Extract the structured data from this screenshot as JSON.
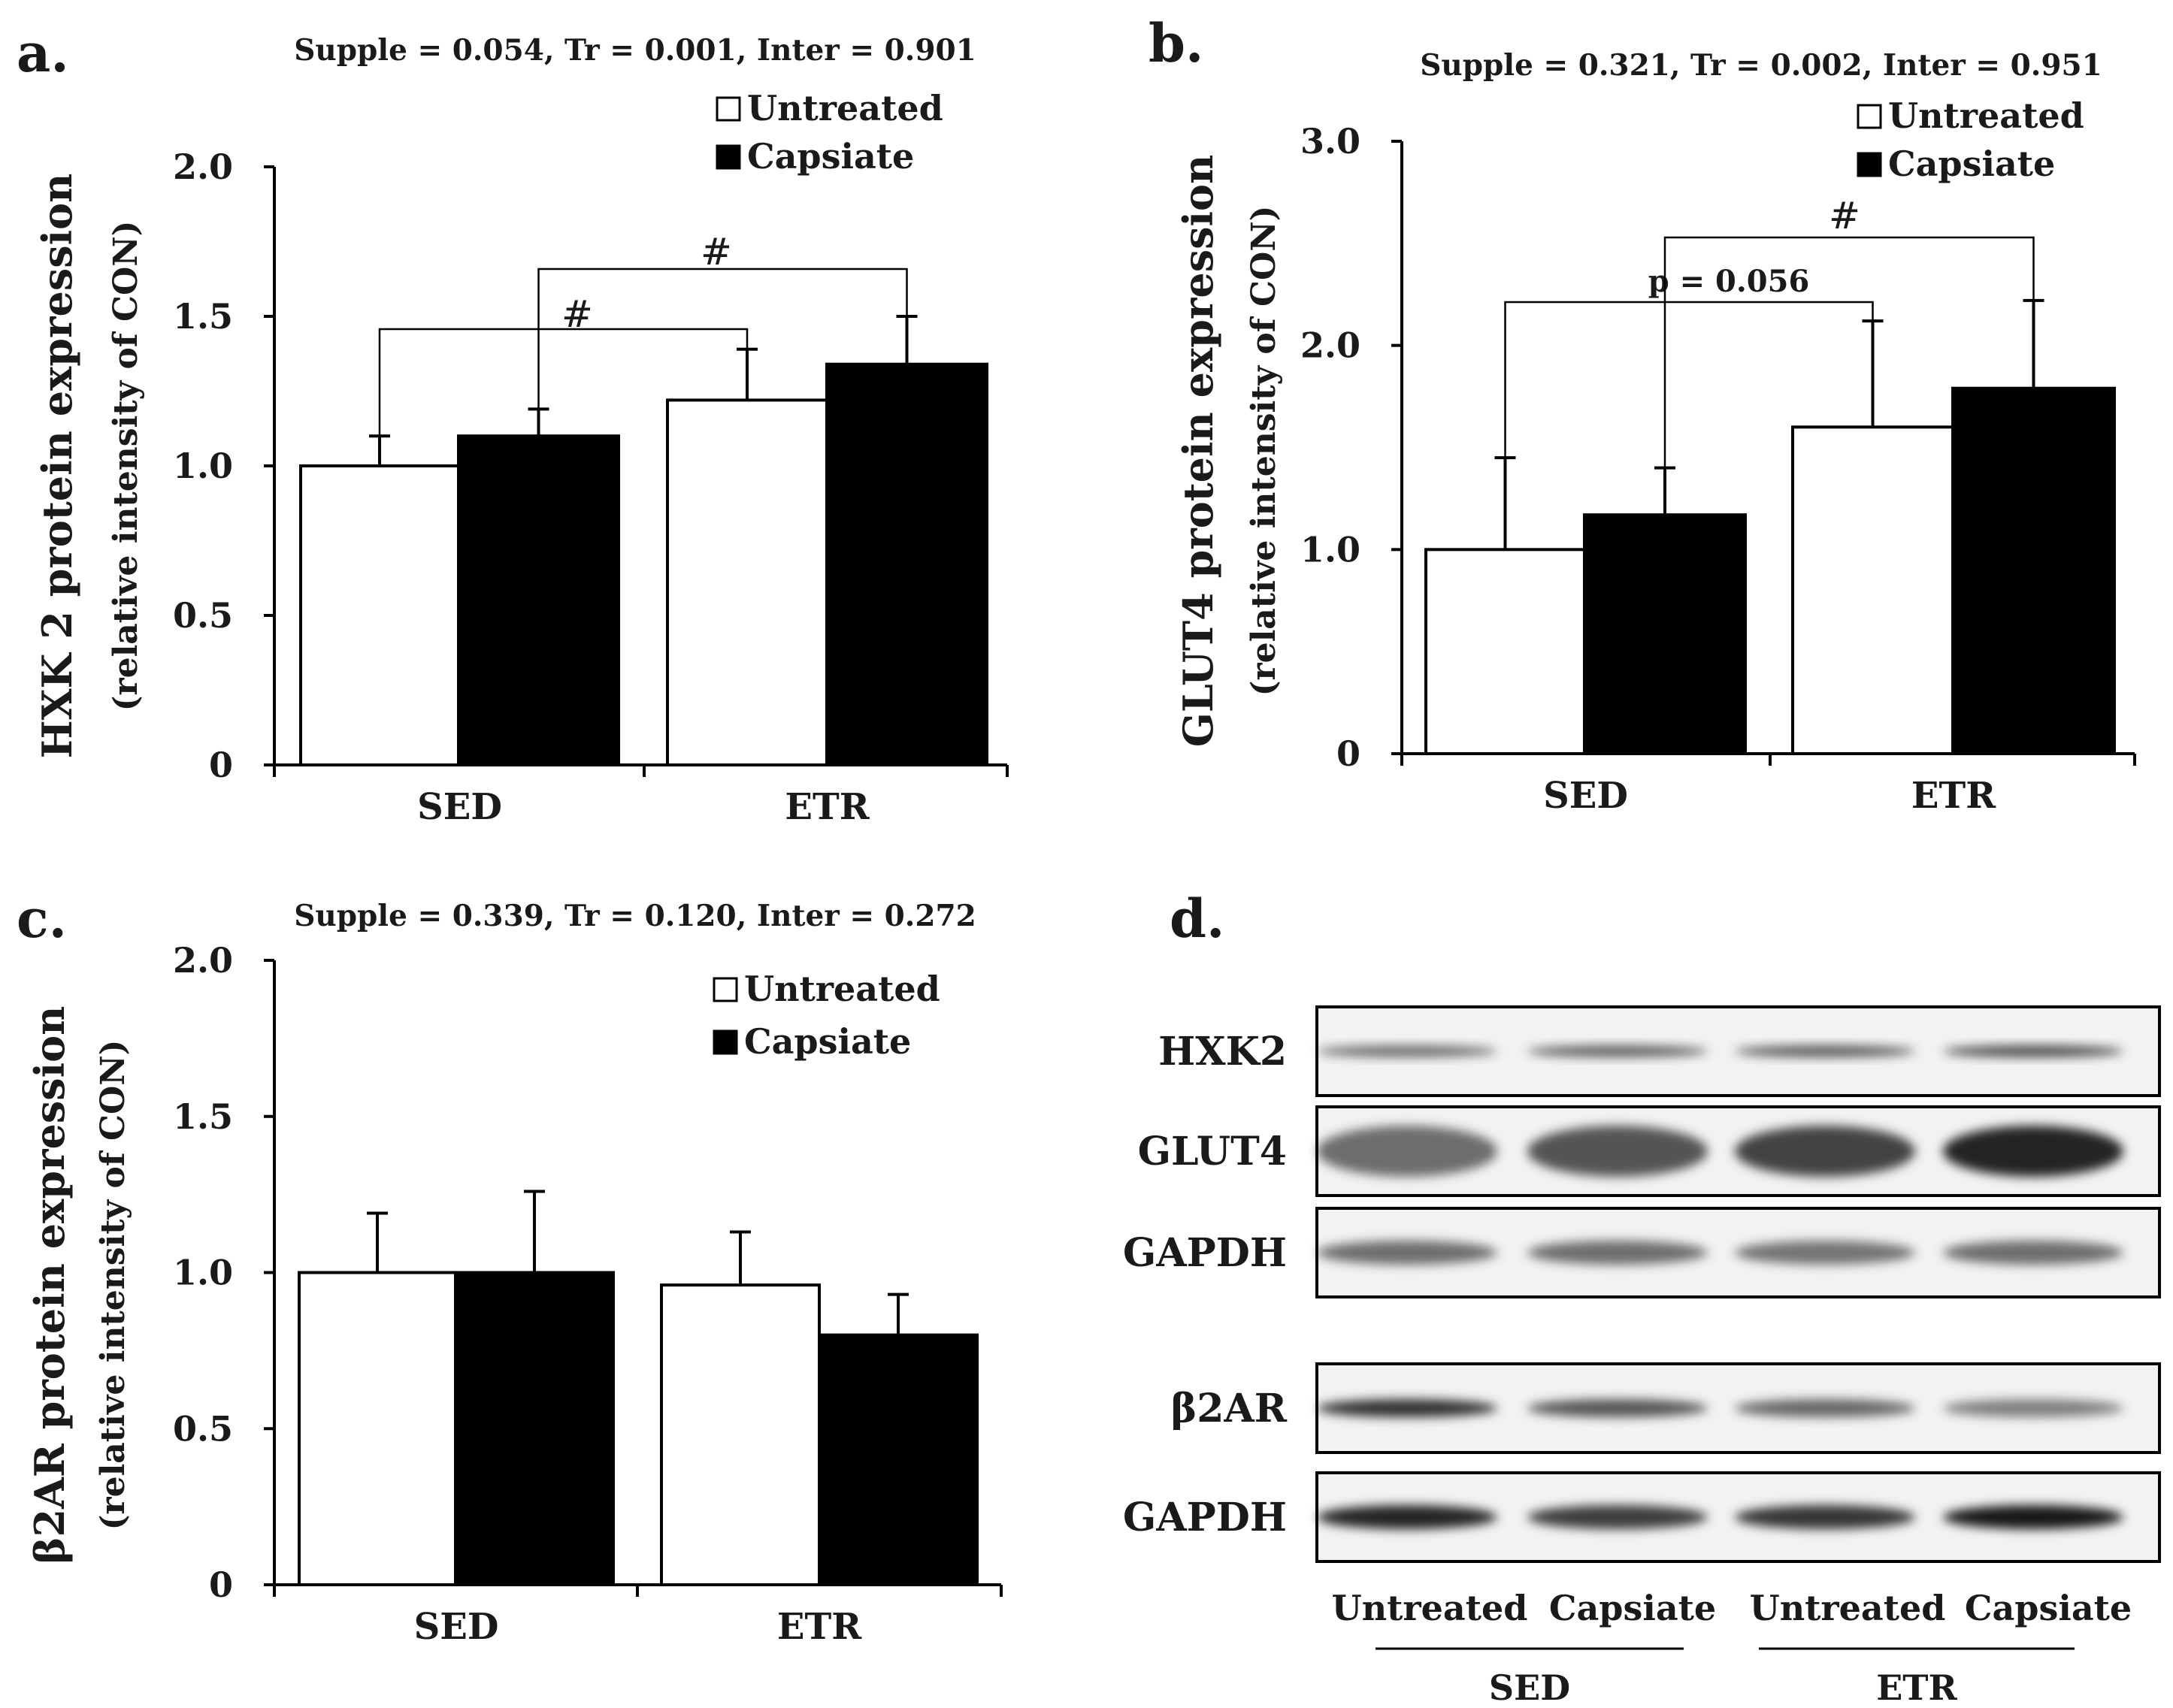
{
  "chart_data": [
    {
      "panel": "a.",
      "type": "bar",
      "title": "Supple = 0.054, Tr = 0.001, Inter = 0.901",
      "ylabel": "HXK 2 protein expression",
      "ylabel_sub": "(relative intensity of CON)",
      "ylim": [
        0,
        2.0
      ],
      "yticks": [
        "0",
        "0.5",
        "1.0",
        "1.5",
        "2.0"
      ],
      "categories": [
        "SED",
        "ETR"
      ],
      "series": [
        {
          "name": "Untreated",
          "color": "#ffffff",
          "values": [
            1.0,
            1.22
          ],
          "errors": [
            0.1,
            0.17
          ]
        },
        {
          "name": "Capsiate",
          "color": "#000000",
          "values": [
            1.1,
            1.34
          ],
          "errors": [
            0.09,
            0.16
          ]
        }
      ],
      "legend": "top-right",
      "annotations": [
        {
          "label": "#",
          "from": [
            0,
            0
          ],
          "to": [
            1,
            0
          ]
        },
        {
          "label": "#",
          "from": [
            0,
            1
          ],
          "to": [
            1,
            1
          ]
        }
      ]
    },
    {
      "panel": "b.",
      "type": "bar",
      "title": "Supple = 0.321, Tr = 0.002, Inter = 0.951",
      "ylabel": "GLUT4 protein expression",
      "ylabel_sub": "(relative intensity of CON)",
      "ylim": [
        0,
        3.0
      ],
      "yticks": [
        "0",
        "1.0",
        "2.0",
        "3.0"
      ],
      "categories": [
        "SED",
        "ETR"
      ],
      "series": [
        {
          "name": "Untreated",
          "color": "#ffffff",
          "values": [
            1.0,
            1.6
          ],
          "errors": [
            0.45,
            0.52
          ]
        },
        {
          "name": "Capsiate",
          "color": "#000000",
          "values": [
            1.17,
            1.79
          ],
          "errors": [
            0.23,
            0.43
          ]
        }
      ],
      "legend": "top-right",
      "annotations": [
        {
          "label": "p = 0.056",
          "from": [
            0,
            0
          ],
          "to": [
            1,
            0
          ]
        },
        {
          "label": "#",
          "from": [
            0,
            1
          ],
          "to": [
            1,
            1
          ]
        }
      ]
    },
    {
      "panel": "c.",
      "type": "bar",
      "title": "Supple = 0.339, Tr = 0.120, Inter = 0.272",
      "ylabel": "β2AR protein expression",
      "ylabel_sub": "(relative intensity of CON)",
      "ylim": [
        0,
        2.0
      ],
      "yticks": [
        "0",
        "0.5",
        "1.0",
        "1.5",
        "2.0"
      ],
      "categories": [
        "SED",
        "ETR"
      ],
      "series": [
        {
          "name": "Untreated",
          "color": "#ffffff",
          "values": [
            1.0,
            0.96
          ],
          "errors": [
            0.19,
            0.17
          ]
        },
        {
          "name": "Capsiate",
          "color": "#000000",
          "values": [
            1.0,
            0.8
          ],
          "errors": [
            0.26,
            0.13
          ]
        }
      ],
      "legend": "top-right",
      "annotations": []
    }
  ],
  "blot": {
    "panel": "d.",
    "rows": [
      "HXK2",
      "GLUT4",
      "GAPDH",
      "β2AR",
      "GAPDH"
    ],
    "lanes": [
      "Untreated",
      "Capsiate",
      "Untreated",
      "Capsiate"
    ],
    "groups": [
      "SED",
      "ETR"
    ]
  }
}
